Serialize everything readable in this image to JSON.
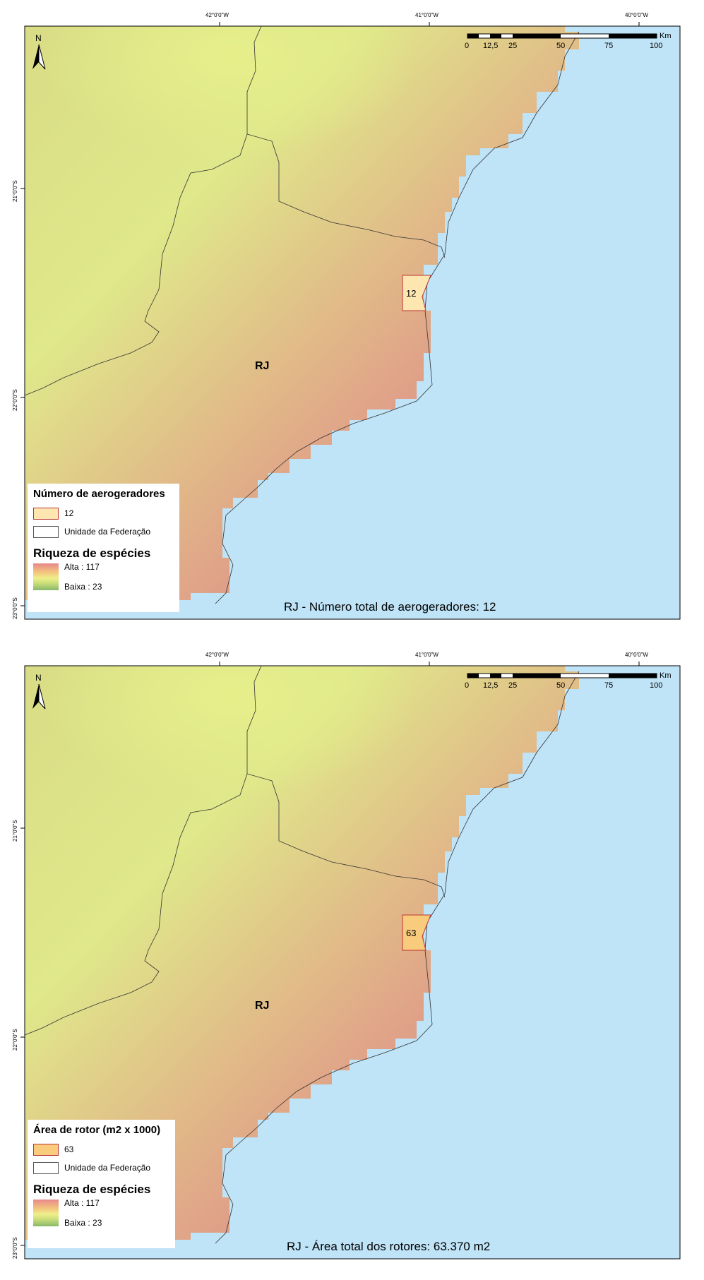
{
  "colors": {
    "sea": "#bfe3f7",
    "high_richness": "#e08a86",
    "low_richness": "#8cba6c",
    "mid_richness": "#dfe88a",
    "turbine_fill_top": "#fde6b0",
    "turbine_fill_bottom": "#f9cb7d",
    "border_line": "#333333",
    "frame": "#000000"
  },
  "graticule": {
    "lon_labels": [
      "42°0'0\"W",
      "41°0'0\"W",
      "40°0'0\"W"
    ],
    "lat_labels": [
      "21°0'0\"S",
      "22°0'0\"S",
      "23°0'0\"S"
    ]
  },
  "north_arrow": {
    "letter": "N",
    "icon": "north-arrow-icon"
  },
  "scalebar": {
    "ticks": [
      "0",
      "12,5",
      "25",
      "50",
      "75",
      "100"
    ],
    "unit": "Km"
  },
  "maps": [
    {
      "state_label": "RJ",
      "municipality_value": "12",
      "legend": {
        "title": "Número de aerogeradores",
        "class_label": "12",
        "boundary_label": "Unidade da Federação",
        "richness_title": "Riqueza de espécies",
        "high_label": "Alta : 117",
        "low_label": "Baixa : 23"
      },
      "caption": "RJ - Número total de aerogeradores: 12"
    },
    {
      "state_label": "RJ",
      "municipality_value": "63",
      "legend": {
        "title": "Área de rotor (m2 x 1000)",
        "class_label": "63",
        "boundary_label": "Unidade da Federação",
        "richness_title": "Riqueza de espécies",
        "high_label": "Alta : 117",
        "low_label": "Baixa : 23"
      },
      "caption": "RJ - Área total dos rotores: 63.370 m2"
    }
  ]
}
